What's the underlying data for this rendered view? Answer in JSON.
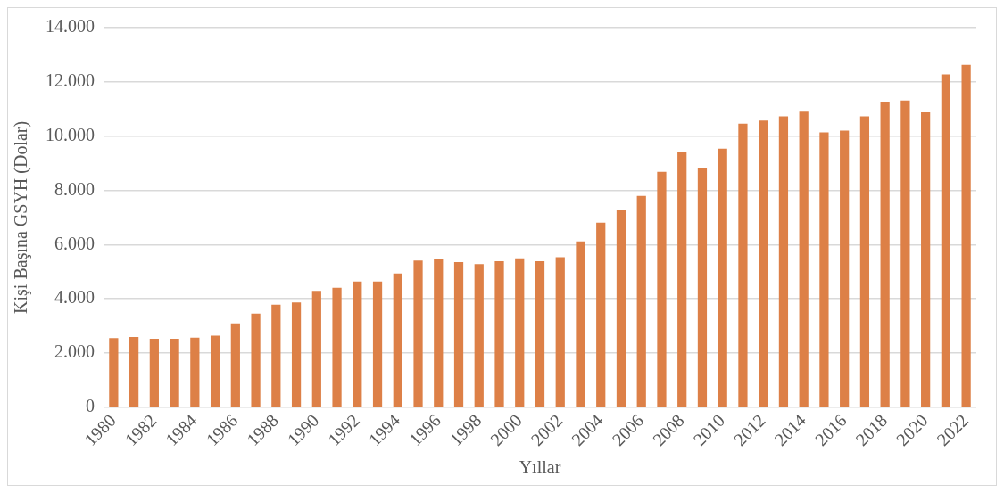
{
  "chart_data": {
    "type": "bar",
    "xlabel": "Yıllar",
    "ylabel": "Kişi Başına GSYH (Dolar)",
    "categories": [
      "1980",
      null,
      "1982",
      null,
      "1984",
      null,
      "1986",
      null,
      "1988",
      null,
      "1990",
      null,
      "1992",
      null,
      "1994",
      null,
      "1996",
      null,
      "1998",
      null,
      "2000",
      null,
      "2002",
      null,
      "2004",
      null,
      "2006",
      null,
      "2008",
      null,
      "2010",
      null,
      "2012",
      null,
      "2014",
      null,
      "2016",
      null,
      "2018",
      null,
      "2020",
      null,
      "2022"
    ],
    "values": [
      2550,
      2590,
      2520,
      2520,
      2565,
      2640,
      3090,
      3450,
      3780,
      3865,
      4290,
      4410,
      4640,
      4640,
      4930,
      5410,
      5460,
      5350,
      5275,
      5385,
      5495,
      5385,
      5530,
      6115,
      6810,
      7270,
      7790,
      8680,
      9420,
      8810,
      9540,
      10460,
      10570,
      10730,
      10900,
      10140,
      10200,
      10730,
      11270,
      11310,
      10880,
      12270,
      12630
    ],
    "color": "#dd8047",
    "ylim": [
      0,
      14000
    ],
    "yticks": [
      0,
      {
        "value": 2000,
        "label": "2.000"
      },
      {
        "value": 4000,
        "label": "4.000"
      },
      {
        "value": 6000,
        "label": "6.000"
      },
      {
        "value": 8000,
        "label": "8.000"
      },
      {
        "value": 10000,
        "label": "10.000"
      },
      {
        "value": 12000,
        "label": "12.000"
      },
      {
        "value": 14000,
        "label": "14.000"
      }
    ],
    "grid": "y"
  }
}
